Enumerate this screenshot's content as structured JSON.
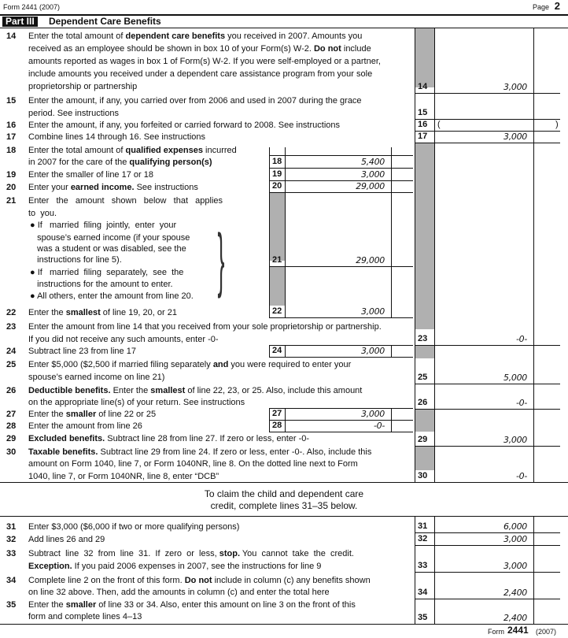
{
  "header": {
    "form_label": "Form 2441 (2007)",
    "page_label": "Page",
    "page_num": "2"
  },
  "part": {
    "tag": "Part III",
    "title": "Dependent Care Benefits"
  },
  "lines": [
    {
      "num": "14",
      "text": [
        [
          "Enter the total amount of ",
          "dependent care benefits",
          " you received in 2007. Amounts you"
        ],
        [
          "received as an employee should be shown in box 10 of your Form(s) W-2. ",
          "Do not",
          " include"
        ],
        [
          "amounts reported as wages in box 1 of Form(s) W-2. If you were self-employed or a partner,"
        ],
        [
          "include amounts you received under a dependent care assistance program from your sole"
        ],
        [
          "proprietorship or partnership"
        ]
      ],
      "box": "14",
      "value": "3,000"
    },
    {
      "num": "15",
      "text": [
        [
          "Enter the amount, if any, you carried over from 2006 and used in 2007 during the grace"
        ],
        [
          "period. See instructions"
        ]
      ],
      "box": "15",
      "value": ""
    },
    {
      "num": "16",
      "text": [
        [
          "Enter the amount, if any, you forfeited or carried forward to 2008. See instructions"
        ]
      ],
      "box": "16",
      "value": "",
      "open_paren": "(",
      "close_paren": ")"
    },
    {
      "num": "17",
      "text": [
        [
          "Combine lines 14 through 16. See instructions"
        ]
      ],
      "box": "17",
      "value": "3,000"
    },
    {
      "num": "18",
      "text": [
        [
          "Enter the total amount of ",
          "qualified expenses",
          " incurred"
        ],
        [
          "in 2007 for the care of the ",
          "qualifying person(s)"
        ]
      ],
      "box": "18",
      "value": "5,400"
    },
    {
      "num": "19",
      "text": [
        [
          "Enter the smaller of line 17 or 18"
        ]
      ],
      "box": "19",
      "value": "3,000"
    },
    {
      "num": "20",
      "text": [
        [
          "Enter your ",
          "earned income.",
          " See instructions"
        ]
      ],
      "box": "20",
      "value": "29,000"
    },
    {
      "num": "21",
      "text": [
        [
          "Enter   the   amount   shown   below   that   applies"
        ],
        [
          "to  you."
        ],
        [
          "● If   married  filing  jointly,  enter  your"
        ],
        [
          "   spouse’s earned income (if your spouse"
        ],
        [
          "   was a student or was disabled, see the"
        ],
        [
          "   instructions for line 5)."
        ],
        [
          "● If   married  filing  separately,  see  the"
        ],
        [
          "   instructions for the amount to enter."
        ],
        [
          "● All others, enter the amount from line 20."
        ]
      ],
      "box": "21",
      "value": "29,000"
    },
    {
      "num": "22",
      "text": [
        [
          "Enter the ",
          "smallest",
          " of line 19, 20, or 21"
        ]
      ],
      "box": "22",
      "value": "3,000"
    },
    {
      "num": "23",
      "text": [
        [
          "Enter the amount from line 14 that you received from your sole proprietorship or partnership."
        ],
        [
          "If you did not receive any such amounts, enter -0-"
        ]
      ],
      "box": "23",
      "value": "-0-"
    },
    {
      "num": "24",
      "text": [
        [
          "Subtract line 23 from line 17"
        ]
      ],
      "box": "24",
      "value": "3,000"
    },
    {
      "num": "25",
      "text": [
        [
          "Enter $5,000 ($2,500 if married filing separately ",
          "and",
          " you were required to enter your"
        ],
        [
          "spouse’s earned income on line 21)"
        ]
      ],
      "box": "25",
      "value": "5,000"
    },
    {
      "num": "26",
      "text": [
        [
          "",
          "Deductible benefits.",
          " Enter the ",
          "smallest",
          " of line 22, 23, or 25. Also, include this amount"
        ],
        [
          "on the appropriate line(s) of your return. See instructions"
        ]
      ],
      "box": "26",
      "value": "-0-"
    },
    {
      "num": "27",
      "text": [
        [
          "Enter the ",
          "smaller",
          " of line 22 or 25"
        ]
      ],
      "box": "27",
      "value": "3,000"
    },
    {
      "num": "28",
      "text": [
        [
          "Enter the amount from line 26"
        ]
      ],
      "box": "28",
      "value": "-0-"
    },
    {
      "num": "29",
      "text": [
        [
          "",
          "Excluded benefits.",
          " Subtract line 28 from line 27. If zero or less, enter -0-"
        ]
      ],
      "box": "29",
      "value": "3,000"
    },
    {
      "num": "30",
      "text": [
        [
          "",
          "Taxable benefits.",
          " Subtract line 29 from line 24. If zero or less, enter -0-. Also, include this"
        ],
        [
          "amount on Form 1040, line 7, or Form 1040NR, line 8. On the dotted line next to Form"
        ],
        [
          "1040, line 7, or Form 1040NR, line 8, enter “DCB”"
        ]
      ],
      "box": "30",
      "value": "-0-"
    },
    {
      "num": "31",
      "text": [
        [
          "Enter $3,000 ($6,000 if two or more qualifying persons)"
        ]
      ],
      "box": "31",
      "value": "6,000"
    },
    {
      "num": "32",
      "text": [
        [
          "Add lines 26 and 29"
        ]
      ],
      "box": "32",
      "value": "3,000"
    },
    {
      "num": "33",
      "text": [
        [
          "Subtract  line  32  from  line  31.  If  zero  or  less, ",
          "stop.",
          " You  cannot  take  the  credit."
        ],
        [
          "",
          "Exception.",
          " If you paid 2006 expenses in 2007, see the instructions for line 9"
        ]
      ],
      "box": "33",
      "value": "3,000"
    },
    {
      "num": "34",
      "text": [
        [
          "Complete line 2 on the front of this form. ",
          "Do not",
          " include in column (c) any benefits shown"
        ],
        [
          "on line 32 above. Then, add the amounts in column (c) and enter the total here"
        ]
      ],
      "box": "34",
      "value": "2,400"
    },
    {
      "num": "35",
      "text": [
        [
          "Enter the ",
          "smaller",
          " of line 33 or 34. Also, enter this amount on line 3 on the front of this"
        ],
        [
          "form and complete lines 4–13"
        ]
      ],
      "box": "35",
      "value": "2,400"
    }
  ],
  "note": [
    "To claim the child and dependent care",
    "credit, complete lines 31–35 below."
  ],
  "footer": {
    "form_label": "Form",
    "form_num": "2441",
    "year": "(2007)"
  }
}
